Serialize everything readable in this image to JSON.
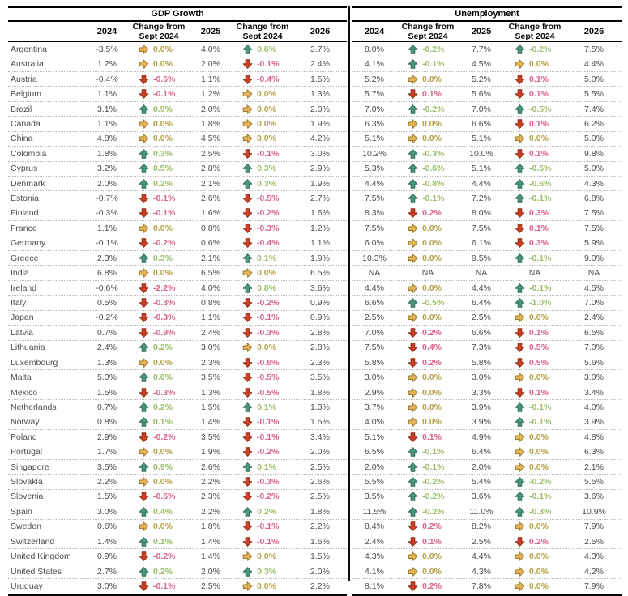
{
  "chart_data": {
    "type": "table",
    "sections": [
      {
        "title": "GDP Growth"
      },
      {
        "title": "Unemployment"
      }
    ],
    "column_headers": {
      "y1": "2024",
      "chg": "Change from Sept 2024",
      "y2": "2025",
      "y3": "2026"
    },
    "na_label": "NA",
    "icons": {
      "up": "up-arrow-icon",
      "down": "down-arrow-icon",
      "right": "right-arrow-icon"
    },
    "colors": {
      "up_arrow_fill": "#4d9582",
      "up_arrow_stroke": "#2a6e55",
      "up_text": "#9cbc6a",
      "down_arrow_fill": "#cc4125",
      "down_arrow_stroke": "#8f2a14",
      "down_text": "#d9638a",
      "right_arrow_fill": "#e3b35b",
      "right_arrow_stroke": "#9c7a2c",
      "right_text": "#b3a24b",
      "value_text": "#4d4d4d",
      "divider": "#0d0d0d"
    },
    "rows": [
      {
        "country": "Argentina",
        "gdp": [
          "-3.5%",
          [
            "right",
            "0.0%"
          ],
          "4.0%",
          [
            "up",
            "0.6%"
          ],
          "3.7%"
        ],
        "unemp": [
          "8.0%",
          [
            "up",
            "-0.2%"
          ],
          "7.7%",
          [
            "up",
            "-0.2%"
          ],
          "7.5%"
        ]
      },
      {
        "country": "Australia",
        "gdp": [
          "1.2%",
          [
            "right",
            "0.0%"
          ],
          "2.0%",
          [
            "down",
            "-0.1%"
          ],
          "2.4%"
        ],
        "unemp": [
          "4.1%",
          [
            "up",
            "-0.1%"
          ],
          "4.5%",
          [
            "right",
            "0.0%"
          ],
          "4.4%"
        ]
      },
      {
        "country": "Austria",
        "gdp": [
          "-0.4%",
          [
            "down",
            "-0.6%"
          ],
          "1.1%",
          [
            "down",
            "-0.4%"
          ],
          "1.5%"
        ],
        "unemp": [
          "5.2%",
          [
            "right",
            "0.0%"
          ],
          "5.2%",
          [
            "down",
            "0.1%"
          ],
          "5.0%"
        ]
      },
      {
        "country": "Belgium",
        "gdp": [
          "1.1%",
          [
            "down",
            "-0.1%"
          ],
          "1.2%",
          [
            "right",
            "0.0%"
          ],
          "1.3%"
        ],
        "unemp": [
          "5.7%",
          [
            "down",
            "0.1%"
          ],
          "5.6%",
          [
            "down",
            "0.1%"
          ],
          "5.5%"
        ]
      },
      {
        "country": "Brazil",
        "gdp": [
          "3.1%",
          [
            "up",
            "0.9%"
          ],
          "2.0%",
          [
            "right",
            "0.0%"
          ],
          "2.0%"
        ],
        "unemp": [
          "7.0%",
          [
            "up",
            "-0.2%"
          ],
          "7.0%",
          [
            "up",
            "-0.5%"
          ],
          "7.4%"
        ]
      },
      {
        "country": "Canada",
        "gdp": [
          "1.1%",
          [
            "right",
            "0.0%"
          ],
          "1.8%",
          [
            "right",
            "0.0%"
          ],
          "1.9%"
        ],
        "unemp": [
          "6.3%",
          [
            "right",
            "0.0%"
          ],
          "6.6%",
          [
            "down",
            "0.1%"
          ],
          "6.2%"
        ]
      },
      {
        "country": "China",
        "gdp": [
          "4.8%",
          [
            "right",
            "0.0%"
          ],
          "4.5%",
          [
            "right",
            "0.0%"
          ],
          "4.2%"
        ],
        "unemp": [
          "5.1%",
          [
            "right",
            "0.0%"
          ],
          "5.1%",
          [
            "right",
            "0.0%"
          ],
          "5.0%"
        ]
      },
      {
        "country": "Colombia",
        "gdp": [
          "1.8%",
          [
            "up",
            "0.3%"
          ],
          "2.5%",
          [
            "down",
            "-0.1%"
          ],
          "3.0%"
        ],
        "unemp": [
          "10.2%",
          [
            "up",
            "-0.3%"
          ],
          "10.0%",
          [
            "down",
            "0.1%"
          ],
          "9.8%"
        ]
      },
      {
        "country": "Cyprus",
        "gdp": [
          "3.2%",
          [
            "up",
            "0.5%"
          ],
          "2.8%",
          [
            "up",
            "0.3%"
          ],
          "2.9%"
        ],
        "unemp": [
          "5.3%",
          [
            "up",
            "-0.6%"
          ],
          "5.1%",
          [
            "up",
            "-0.6%"
          ],
          "5.0%"
        ]
      },
      {
        "country": "Denmark",
        "gdp": [
          "2.0%",
          [
            "up",
            "0.2%"
          ],
          "2.1%",
          [
            "up",
            "0.3%"
          ],
          "1.9%"
        ],
        "unemp": [
          "4.4%",
          [
            "up",
            "-0.8%"
          ],
          "4.4%",
          [
            "up",
            "-0.6%"
          ],
          "4.3%"
        ]
      },
      {
        "country": "Estonia",
        "gdp": [
          "-0.7%",
          [
            "down",
            "-0.1%"
          ],
          "2.6%",
          [
            "down",
            "-0.5%"
          ],
          "2.7%"
        ],
        "unemp": [
          "7.5%",
          [
            "up",
            "-0.1%"
          ],
          "7.2%",
          [
            "up",
            "-0.1%"
          ],
          "6.8%"
        ]
      },
      {
        "country": "Finland",
        "gdp": [
          "-0.3%",
          [
            "down",
            "-0.1%"
          ],
          "1.6%",
          [
            "down",
            "-0.2%"
          ],
          "1.6%"
        ],
        "unemp": [
          "8.3%",
          [
            "down",
            "0.2%"
          ],
          "8.0%",
          [
            "down",
            "0.3%"
          ],
          "7.5%"
        ]
      },
      {
        "country": "France",
        "gdp": [
          "1.1%",
          [
            "right",
            "0.0%"
          ],
          "0.8%",
          [
            "down",
            "-0.3%"
          ],
          "1.2%"
        ],
        "unemp": [
          "7.5%",
          [
            "right",
            "0.0%"
          ],
          "7.5%",
          [
            "down",
            "0.1%"
          ],
          "7.5%"
        ]
      },
      {
        "country": "Germany",
        "gdp": [
          "-0.1%",
          [
            "down",
            "-0.2%"
          ],
          "0.6%",
          [
            "down",
            "-0.4%"
          ],
          "1.1%"
        ],
        "unemp": [
          "6.0%",
          [
            "right",
            "0.0%"
          ],
          "6.1%",
          [
            "down",
            "0.3%"
          ],
          "5.9%"
        ]
      },
      {
        "country": "Greece",
        "gdp": [
          "2.3%",
          [
            "up",
            "0.3%"
          ],
          "2.1%",
          [
            "up",
            "0.1%"
          ],
          "1.9%"
        ],
        "unemp": [
          "10.3%",
          [
            "right",
            "0.0%"
          ],
          "9.5%",
          [
            "up",
            "-0.1%"
          ],
          "9.0%"
        ]
      },
      {
        "country": "India",
        "gdp": [
          "6.8%",
          [
            "right",
            "0.0%"
          ],
          "6.5%",
          [
            "right",
            "0.0%"
          ],
          "6.5%"
        ],
        "unemp": [
          "NA",
          [
            "na",
            "NA"
          ],
          "NA",
          [
            "na",
            "NA"
          ],
          "NA"
        ]
      },
      {
        "country": "Ireland",
        "gdp": [
          "-0.6%",
          [
            "down",
            "-2.2%"
          ],
          "4.0%",
          [
            "up",
            "0.8%"
          ],
          "3.6%"
        ],
        "unemp": [
          "4.4%",
          [
            "right",
            "0.0%"
          ],
          "4.4%",
          [
            "up",
            "-0.1%"
          ],
          "4.5%"
        ]
      },
      {
        "country": "Italy",
        "gdp": [
          "0.5%",
          [
            "down",
            "-0.3%"
          ],
          "0.8%",
          [
            "down",
            "-0.2%"
          ],
          "0.9%"
        ],
        "unemp": [
          "6.6%",
          [
            "up",
            "-0.5%"
          ],
          "6.4%",
          [
            "up",
            "-1.0%"
          ],
          "7.0%"
        ]
      },
      {
        "country": "Japan",
        "gdp": [
          "-0.2%",
          [
            "down",
            "-0.3%"
          ],
          "1.1%",
          [
            "down",
            "-0.1%"
          ],
          "0.9%"
        ],
        "unemp": [
          "2.5%",
          [
            "right",
            "0.0%"
          ],
          "2.5%",
          [
            "right",
            "0.0%"
          ],
          "2.4%"
        ]
      },
      {
        "country": "Latvia",
        "gdp": [
          "0.7%",
          [
            "down",
            "-0.9%"
          ],
          "2.4%",
          [
            "down",
            "-0.3%"
          ],
          "2.8%"
        ],
        "unemp": [
          "7.0%",
          [
            "down",
            "0.2%"
          ],
          "6.6%",
          [
            "down",
            "0.1%"
          ],
          "6.5%"
        ]
      },
      {
        "country": "Lithuania",
        "gdp": [
          "2.4%",
          [
            "up",
            "0.2%"
          ],
          "3.0%",
          [
            "right",
            "0.0%"
          ],
          "2.8%"
        ],
        "unemp": [
          "7.5%",
          [
            "down",
            "0.4%"
          ],
          "7.3%",
          [
            "down",
            "0.5%"
          ],
          "7.0%"
        ]
      },
      {
        "country": "Luxembourg",
        "gdp": [
          "1.3%",
          [
            "right",
            "0.0%"
          ],
          "2.3%",
          [
            "down",
            "-0.6%"
          ],
          "2.3%"
        ],
        "unemp": [
          "5.8%",
          [
            "down",
            "0.2%"
          ],
          "5.8%",
          [
            "down",
            "0.5%"
          ],
          "5.6%"
        ]
      },
      {
        "country": "Malta",
        "gdp": [
          "5.0%",
          [
            "up",
            "0.6%"
          ],
          "3.5%",
          [
            "down",
            "-0.5%"
          ],
          "3.5%"
        ],
        "unemp": [
          "3.0%",
          [
            "right",
            "0.0%"
          ],
          "3.0%",
          [
            "right",
            "0.0%"
          ],
          "3.0%"
        ]
      },
      {
        "country": "Mexico",
        "gdp": [
          "1.5%",
          [
            "down",
            "-0.3%"
          ],
          "1.3%",
          [
            "down",
            "-0.5%"
          ],
          "1.8%"
        ],
        "unemp": [
          "2.9%",
          [
            "right",
            "0.0%"
          ],
          "3.3%",
          [
            "down",
            "0.1%"
          ],
          "3.4%"
        ]
      },
      {
        "country": "Netherlands",
        "gdp": [
          "0.7%",
          [
            "up",
            "0.2%"
          ],
          "1.5%",
          [
            "up",
            "0.1%"
          ],
          "1.3%"
        ],
        "unemp": [
          "3.7%",
          [
            "right",
            "0.0%"
          ],
          "3.9%",
          [
            "up",
            "-0.1%"
          ],
          "4.0%"
        ]
      },
      {
        "country": "Norway",
        "gdp": [
          "0.8%",
          [
            "up",
            "0.1%"
          ],
          "1.4%",
          [
            "down",
            "-0.1%"
          ],
          "1.5%"
        ],
        "unemp": [
          "4.0%",
          [
            "right",
            "0.0%"
          ],
          "3.9%",
          [
            "up",
            "-0.1%"
          ],
          "3.9%"
        ]
      },
      {
        "country": "Poland",
        "gdp": [
          "2.9%",
          [
            "down",
            "-0.2%"
          ],
          "3.5%",
          [
            "down",
            "-0.1%"
          ],
          "3.4%"
        ],
        "unemp": [
          "5.1%",
          [
            "down",
            "0.1%"
          ],
          "4.9%",
          [
            "right",
            "0.0%"
          ],
          "4.8%"
        ]
      },
      {
        "country": "Portugal",
        "gdp": [
          "1.7%",
          [
            "right",
            "0.0%"
          ],
          "1.9%",
          [
            "down",
            "-0.2%"
          ],
          "2.0%"
        ],
        "unemp": [
          "6.5%",
          [
            "up",
            "-0.1%"
          ],
          "6.4%",
          [
            "right",
            "0.0%"
          ],
          "6.3%"
        ]
      },
      {
        "country": "Singapore",
        "gdp": [
          "3.5%",
          [
            "up",
            "0.9%"
          ],
          "2.6%",
          [
            "up",
            "0.1%"
          ],
          "2.5%"
        ],
        "unemp": [
          "2.0%",
          [
            "up",
            "-0.1%"
          ],
          "2.0%",
          [
            "right",
            "0.0%"
          ],
          "2.1%"
        ]
      },
      {
        "country": "Slovakia",
        "gdp": [
          "2.2%",
          [
            "right",
            "0.0%"
          ],
          "2.2%",
          [
            "down",
            "-0.3%"
          ],
          "2.6%"
        ],
        "unemp": [
          "5.5%",
          [
            "up",
            "-0.2%"
          ],
          "5.4%",
          [
            "up",
            "-0.2%"
          ],
          "5.5%"
        ]
      },
      {
        "country": "Slovenia",
        "gdp": [
          "1.5%",
          [
            "down",
            "-0.6%"
          ],
          "2.3%",
          [
            "down",
            "-0.2%"
          ],
          "2.5%"
        ],
        "unemp": [
          "3.5%",
          [
            "up",
            "-0.2%"
          ],
          "3.6%",
          [
            "up",
            "-0.1%"
          ],
          "3.6%"
        ]
      },
      {
        "country": "Spain",
        "gdp": [
          "3.0%",
          [
            "up",
            "0.4%"
          ],
          "2.2%",
          [
            "up",
            "0.2%"
          ],
          "1.8%"
        ],
        "unemp": [
          "11.5%",
          [
            "up",
            "-0.2%"
          ],
          "11.0%",
          [
            "up",
            "-0.3%"
          ],
          "10.9%"
        ]
      },
      {
        "country": "Sweden",
        "gdp": [
          "0.6%",
          [
            "right",
            "0.0%"
          ],
          "1.8%",
          [
            "down",
            "-0.1%"
          ],
          "2.2%"
        ],
        "unemp": [
          "8.4%",
          [
            "down",
            "0.2%"
          ],
          "8.2%",
          [
            "right",
            "0.0%"
          ],
          "7.9%"
        ]
      },
      {
        "country": "Switzerland",
        "gdp": [
          "1.4%",
          [
            "up",
            "0.1%"
          ],
          "1.4%",
          [
            "down",
            "-0.1%"
          ],
          "1.6%"
        ],
        "unemp": [
          "2.4%",
          [
            "down",
            "0.1%"
          ],
          "2.5%",
          [
            "down",
            "0.2%"
          ],
          "2.5%"
        ]
      },
      {
        "country": "United Kingdom",
        "gdp": [
          "0.9%",
          [
            "down",
            "-0.2%"
          ],
          "1.4%",
          [
            "right",
            "0.0%"
          ],
          "1.5%"
        ],
        "unemp": [
          "4.3%",
          [
            "right",
            "0.0%"
          ],
          "4.4%",
          [
            "right",
            "0.0%"
          ],
          "4.3%"
        ]
      },
      {
        "country": "United States",
        "gdp": [
          "2.7%",
          [
            "up",
            "0.2%"
          ],
          "2.0%",
          [
            "up",
            "0.3%"
          ],
          "2.0%"
        ],
        "unemp": [
          "4.1%",
          [
            "right",
            "0.0%"
          ],
          "4.3%",
          [
            "right",
            "0.0%"
          ],
          "4.2%"
        ]
      },
      {
        "country": "Uruguay",
        "gdp": [
          "3.0%",
          [
            "down",
            "-0.1%"
          ],
          "2.5%",
          [
            "right",
            "0.0%"
          ],
          "2.2%"
        ],
        "unemp": [
          "8.1%",
          [
            "down",
            "0.2%"
          ],
          "7.8%",
          [
            "right",
            "0.0%"
          ],
          "7.9%"
        ]
      }
    ]
  }
}
